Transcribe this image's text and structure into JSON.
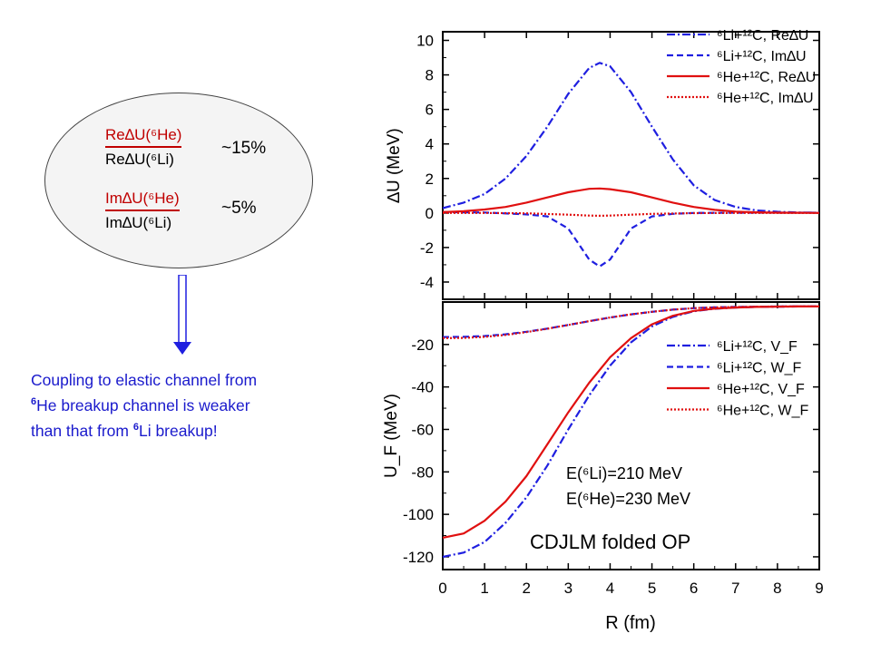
{
  "callout": {
    "ratio_re": {
      "num": "Re∆U(⁶He)",
      "den": "Re∆U(⁶Li)",
      "value": "~15%"
    },
    "ratio_im": {
      "num": "Im∆U(⁶He)",
      "den": "Im∆U(⁶Li)",
      "value": "~5%"
    }
  },
  "note": {
    "line1": "Coupling to elastic channel from",
    "line2_sup": "6",
    "line2": "He breakup channel is weaker",
    "line3_pre": "than that from ",
    "line3_sup": "6",
    "line3_post": "Li breakup!"
  },
  "colors": {
    "blue": "#1f1fe0",
    "red": "#e01010",
    "note": "#1a1acc"
  },
  "chart_data": [
    {
      "type": "line",
      "ylabel": "∆U (MeV)",
      "xlim": [
        0,
        9
      ],
      "ylim": [
        -5,
        10.5
      ],
      "yticks": [
        -4,
        -2,
        0,
        2,
        4,
        6,
        8,
        10
      ],
      "legend_position": "top-right",
      "series": [
        {
          "name": "⁶Li+¹²C, Re∆U",
          "style": "dashdot",
          "color": "#1f1fe0",
          "x": [
            0,
            0.5,
            1,
            1.5,
            2,
            2.5,
            3,
            3.5,
            3.75,
            4,
            4.5,
            5,
            5.5,
            6,
            6.5,
            7,
            7.5,
            8,
            8.5,
            9
          ],
          "y": [
            0.28,
            0.6,
            1.1,
            2.0,
            3.3,
            5.0,
            6.9,
            8.4,
            8.7,
            8.5,
            7.0,
            5.0,
            3.1,
            1.6,
            0.75,
            0.35,
            0.15,
            0.07,
            0.03,
            0.02
          ]
        },
        {
          "name": "⁶Li+¹²C, Im∆U",
          "style": "dashed",
          "color": "#1f1fe0",
          "x": [
            0,
            1,
            2,
            2.5,
            3,
            3.25,
            3.5,
            3.75,
            4,
            4.25,
            4.5,
            5,
            5.5,
            6,
            7,
            8,
            9
          ],
          "y": [
            0.05,
            0.03,
            -0.08,
            -0.2,
            -0.9,
            -1.8,
            -2.7,
            -3.1,
            -2.7,
            -1.8,
            -0.9,
            -0.2,
            -0.05,
            0.0,
            0.02,
            0.02,
            0.02
          ]
        },
        {
          "name": "⁶He+¹²C, Re∆U",
          "style": "solid",
          "color": "#e01010",
          "x": [
            0,
            0.5,
            1,
            1.5,
            2,
            2.5,
            3,
            3.5,
            3.75,
            4,
            4.5,
            5,
            5.5,
            6,
            6.5,
            7,
            7.5,
            8,
            8.5,
            9
          ],
          "y": [
            0.05,
            0.1,
            0.2,
            0.35,
            0.6,
            0.9,
            1.2,
            1.4,
            1.42,
            1.38,
            1.2,
            0.9,
            0.6,
            0.35,
            0.18,
            0.08,
            0.04,
            0.02,
            0.01,
            0.0
          ]
        },
        {
          "name": "⁶He+¹²C, Im∆U",
          "style": "dotted",
          "color": "#e01010",
          "x": [
            0,
            1,
            2,
            3,
            3.5,
            3.75,
            4,
            4.5,
            5,
            6,
            7,
            8,
            9
          ],
          "y": [
            0.0,
            0.0,
            -0.02,
            -0.1,
            -0.15,
            -0.16,
            -0.15,
            -0.1,
            -0.05,
            -0.01,
            0.0,
            0.0,
            0.0
          ]
        }
      ]
    },
    {
      "type": "line",
      "xlabel": "R (fm)",
      "ylabel": "U_F (MeV)",
      "xlim": [
        0,
        9
      ],
      "ylim": [
        -126,
        0
      ],
      "xticks": [
        0,
        1,
        2,
        3,
        4,
        5,
        6,
        7,
        8,
        9
      ],
      "yticks": [
        -120,
        -100,
        -80,
        -60,
        -40,
        -20
      ],
      "legend_position": "top-right",
      "annotations": [
        "E(⁶Li)=210 MeV",
        "E(⁶He)=230 MeV",
        "CDJLM folded OP"
      ],
      "series": [
        {
          "name": "⁶Li+¹²C, V_F",
          "style": "dashdot",
          "color": "#1f1fe0",
          "x": [
            0,
            0.5,
            1,
            1.5,
            2,
            2.5,
            3,
            3.5,
            4,
            4.5,
            5,
            5.5,
            6,
            6.5,
            7,
            7.5,
            8,
            8.5,
            9
          ],
          "y": [
            -120,
            -118,
            -113,
            -104,
            -92,
            -77,
            -60,
            -44,
            -30,
            -19,
            -11.5,
            -7,
            -4.3,
            -3.2,
            -2.6,
            -2.3,
            -2.2,
            -2.1,
            -2.1
          ]
        },
        {
          "name": "⁶Li+¹²C, W_F",
          "style": "dashed",
          "color": "#1f1fe0",
          "x": [
            0,
            0.5,
            1,
            1.5,
            2,
            2.5,
            3,
            3.5,
            4,
            4.5,
            5,
            5.5,
            6,
            6.5,
            7,
            7.5,
            8,
            8.5,
            9
          ],
          "y": [
            -16.5,
            -16.4,
            -16,
            -15.2,
            -14,
            -12.5,
            -10.8,
            -9,
            -7.3,
            -5.8,
            -4.6,
            -3.6,
            -2.9,
            -2.5,
            -2.3,
            -2.2,
            -2.1,
            -2.1,
            -2.1
          ]
        },
        {
          "name": "⁶He+¹²C, V_F",
          "style": "solid",
          "color": "#e01010",
          "x": [
            0,
            0.5,
            1,
            1.5,
            2,
            2.5,
            3,
            3.5,
            4,
            4.5,
            5,
            5.5,
            6,
            6.5,
            7,
            7.5,
            8,
            8.5,
            9
          ],
          "y": [
            -111,
            -109,
            -103,
            -94,
            -82,
            -67,
            -52,
            -38,
            -26,
            -17,
            -10.5,
            -6.5,
            -4.2,
            -3.1,
            -2.6,
            -2.3,
            -2.2,
            -2.1,
            -2.1
          ]
        },
        {
          "name": "⁶He+¹²C, W_F",
          "style": "dotted",
          "color": "#e01010",
          "x": [
            0,
            0.5,
            1,
            1.5,
            2,
            2.5,
            3,
            3.5,
            4,
            4.5,
            5,
            5.5,
            6,
            6.5,
            7,
            7.5,
            8,
            8.5,
            9
          ],
          "y": [
            -17,
            -16.9,
            -16.4,
            -15.5,
            -14.2,
            -12.6,
            -10.8,
            -9,
            -7.3,
            -5.8,
            -4.6,
            -3.6,
            -2.9,
            -2.5,
            -2.3,
            -2.2,
            -2.1,
            -2.1,
            -2.1
          ]
        }
      ]
    }
  ]
}
